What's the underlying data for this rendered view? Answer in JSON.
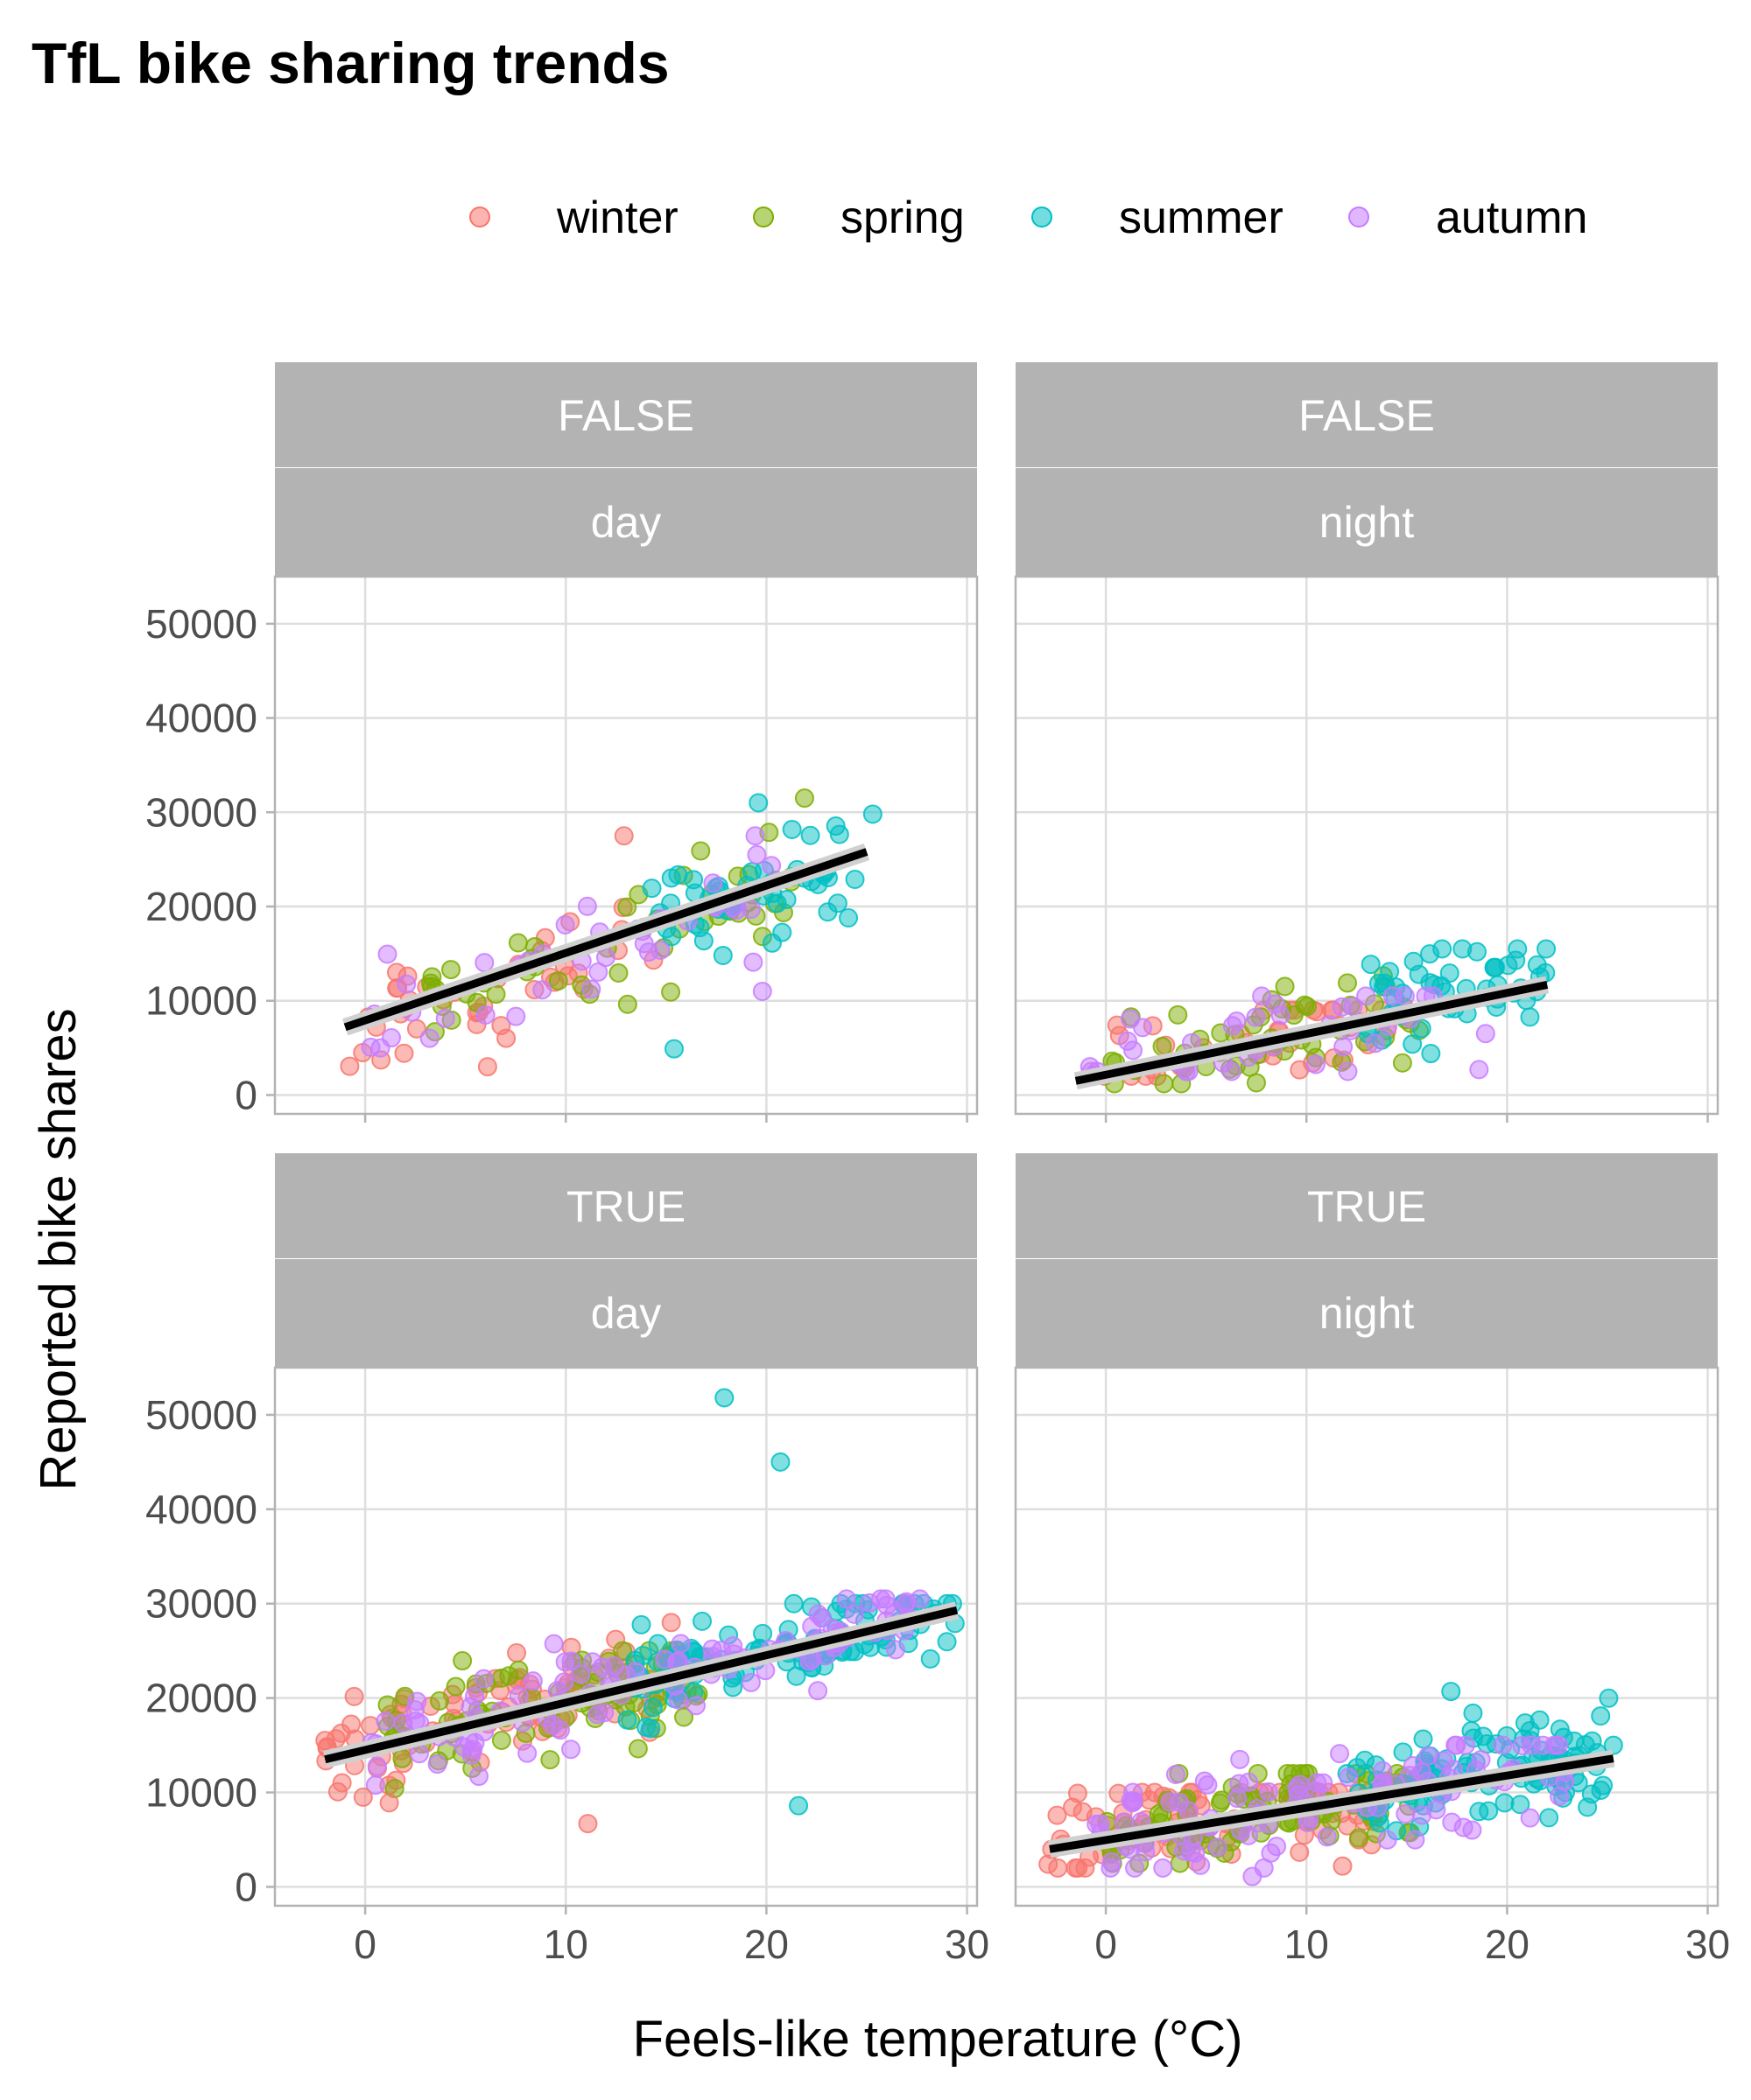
{
  "chart_data": {
    "type": "scatter",
    "title": "TfL bike sharing trends",
    "xlabel": "Feels-like temperature (°C)",
    "ylabel": "Reported bike shares",
    "xlim": [
      -4.5,
      30.5
    ],
    "ylim": [
      -2000,
      55000
    ],
    "x_ticks": [
      "0",
      "10",
      "20",
      "30"
    ],
    "y_ticks": [
      "0",
      "10000",
      "20000",
      "30000",
      "40000",
      "50000"
    ],
    "legend": {
      "position": "top",
      "entries": [
        "winter",
        "spring",
        "summer",
        "autumn"
      ]
    },
    "series_colors": {
      "winter": "#f8766d",
      "spring": "#7cae00",
      "summer": "#00bfc4",
      "autumn": "#c77cff"
    },
    "trend_color": "#000000",
    "panels": [
      {
        "strip_top": "FALSE",
        "strip_bottom": "day",
        "trend": {
          "x": [
            -1,
            25
          ],
          "y": [
            7200,
            25800
          ]
        },
        "clusters": [
          {
            "season": "winter",
            "n": 40,
            "x": [
              -1,
              15
            ],
            "y": [
              3000,
              27500
            ],
            "slope": 620,
            "base": 7500
          },
          {
            "season": "spring",
            "n": 50,
            "x": [
              3,
              22
            ],
            "y": [
              5000,
              31500
            ],
            "slope": 700,
            "base": 7000
          },
          {
            "season": "summer",
            "n": 50,
            "x": [
              14,
              25
            ],
            "y": [
              5000,
              31000
            ],
            "slope": 720,
            "base": 7200
          },
          {
            "season": "autumn",
            "n": 40,
            "x": [
              0,
              21
            ],
            "y": [
              5000,
              29000
            ],
            "slope": 700,
            "base": 7500
          }
        ],
        "points": [
          {
            "season": "spring",
            "x": 21.9,
            "y": 31500
          },
          {
            "season": "summer",
            "x": 19.6,
            "y": 31000
          },
          {
            "season": "summer",
            "x": 25.3,
            "y": 29800
          },
          {
            "season": "winter",
            "x": 12.9,
            "y": 27500
          },
          {
            "season": "winter",
            "x": 6.1,
            "y": 3000
          },
          {
            "season": "summer",
            "x": 15.4,
            "y": 4900
          },
          {
            "season": "autumn",
            "x": 19.8,
            "y": 11000
          }
        ]
      },
      {
        "strip_top": "FALSE",
        "strip_bottom": "night",
        "trend": {
          "x": [
            -1.5,
            22
          ],
          "y": [
            1500,
            11700
          ]
        },
        "clusters": [
          {
            "season": "winter",
            "n": 40,
            "x": [
              -1.5,
              15
            ],
            "y": [
              2000,
              9000
            ],
            "slope": 420,
            "base": 2600
          },
          {
            "season": "spring",
            "n": 50,
            "x": [
              0,
              16
            ],
            "y": [
              1200,
              13000
            ],
            "slope": 450,
            "base": 2600
          },
          {
            "season": "summer",
            "n": 50,
            "x": [
              13,
              22
            ],
            "y": [
              4000,
              15500
            ],
            "slope": 500,
            "base": 3000
          },
          {
            "season": "autumn",
            "n": 40,
            "x": [
              -1,
              19
            ],
            "y": [
              2500,
              10500
            ],
            "slope": 420,
            "base": 2800
          }
        ],
        "points": [
          {
            "season": "summer",
            "x": 21.5,
            "y": 13800
          },
          {
            "season": "summer",
            "x": 18.5,
            "y": 15200
          },
          {
            "season": "autumn",
            "x": 18.6,
            "y": 2700
          },
          {
            "season": "spring",
            "x": 7.5,
            "y": 1300
          }
        ]
      },
      {
        "strip_top": "TRUE",
        "strip_bottom": "day",
        "trend": {
          "x": [
            -2,
            29.5
          ],
          "y": [
            13500,
            29300
          ]
        },
        "clusters": [
          {
            "season": "winter",
            "n": 90,
            "x": [
              -2,
              16
            ],
            "y": [
              6500,
              28000
            ],
            "slope": 480,
            "base": 15300
          },
          {
            "season": "spring",
            "n": 90,
            "x": [
              1,
              17
            ],
            "y": [
              10000,
              25000
            ],
            "slope": 500,
            "base": 15000
          },
          {
            "season": "summer",
            "n": 110,
            "x": [
              13,
              29.5
            ],
            "y": [
              8500,
              30000
            ],
            "slope": 520,
            "base": 14500
          },
          {
            "season": "autumn",
            "n": 110,
            "x": [
              0,
              28
            ],
            "y": [
              9000,
              30500
            ],
            "slope": 500,
            "base": 15000
          }
        ],
        "points": [
          {
            "season": "summer",
            "x": 17.9,
            "y": 51800
          },
          {
            "season": "summer",
            "x": 20.7,
            "y": 45000
          },
          {
            "season": "summer",
            "x": 29.4,
            "y": 27900
          },
          {
            "season": "winter",
            "x": -2,
            "y": 15500
          },
          {
            "season": "winter",
            "x": -0.1,
            "y": 9500
          },
          {
            "season": "winter",
            "x": 1.2,
            "y": 8900
          },
          {
            "season": "winter",
            "x": 11.1,
            "y": 6700
          },
          {
            "season": "summer",
            "x": 21.6,
            "y": 8600
          }
        ]
      },
      {
        "strip_top": "TRUE",
        "strip_bottom": "night",
        "trend": {
          "x": [
            -2.8,
            25.3
          ],
          "y": [
            4000,
            13600
          ]
        },
        "clusters": [
          {
            "season": "winter",
            "n": 90,
            "x": [
              -3,
              14
            ],
            "y": [
              2000,
              10000
            ],
            "slope": 330,
            "base": 5300
          },
          {
            "season": "spring",
            "n": 90,
            "x": [
              0,
              16
            ],
            "y": [
              2500,
              12000
            ],
            "slope": 340,
            "base": 5200
          },
          {
            "season": "summer",
            "n": 110,
            "x": [
              12,
              25.3
            ],
            "y": [
              4500,
              21000
            ],
            "slope": 360,
            "base": 5000
          },
          {
            "season": "autumn",
            "n": 110,
            "x": [
              -1,
              23
            ],
            "y": [
              2000,
              15000
            ],
            "slope": 340,
            "base": 5300
          }
        ],
        "points": [
          {
            "season": "summer",
            "x": 17.2,
            "y": 20700
          },
          {
            "season": "summer",
            "x": 18.3,
            "y": 18400
          },
          {
            "season": "summer",
            "x": 25.3,
            "y": 15000
          },
          {
            "season": "autumn",
            "x": 7.3,
            "y": 1100
          },
          {
            "season": "winter",
            "x": 11.8,
            "y": 2200
          }
        ]
      }
    ]
  }
}
